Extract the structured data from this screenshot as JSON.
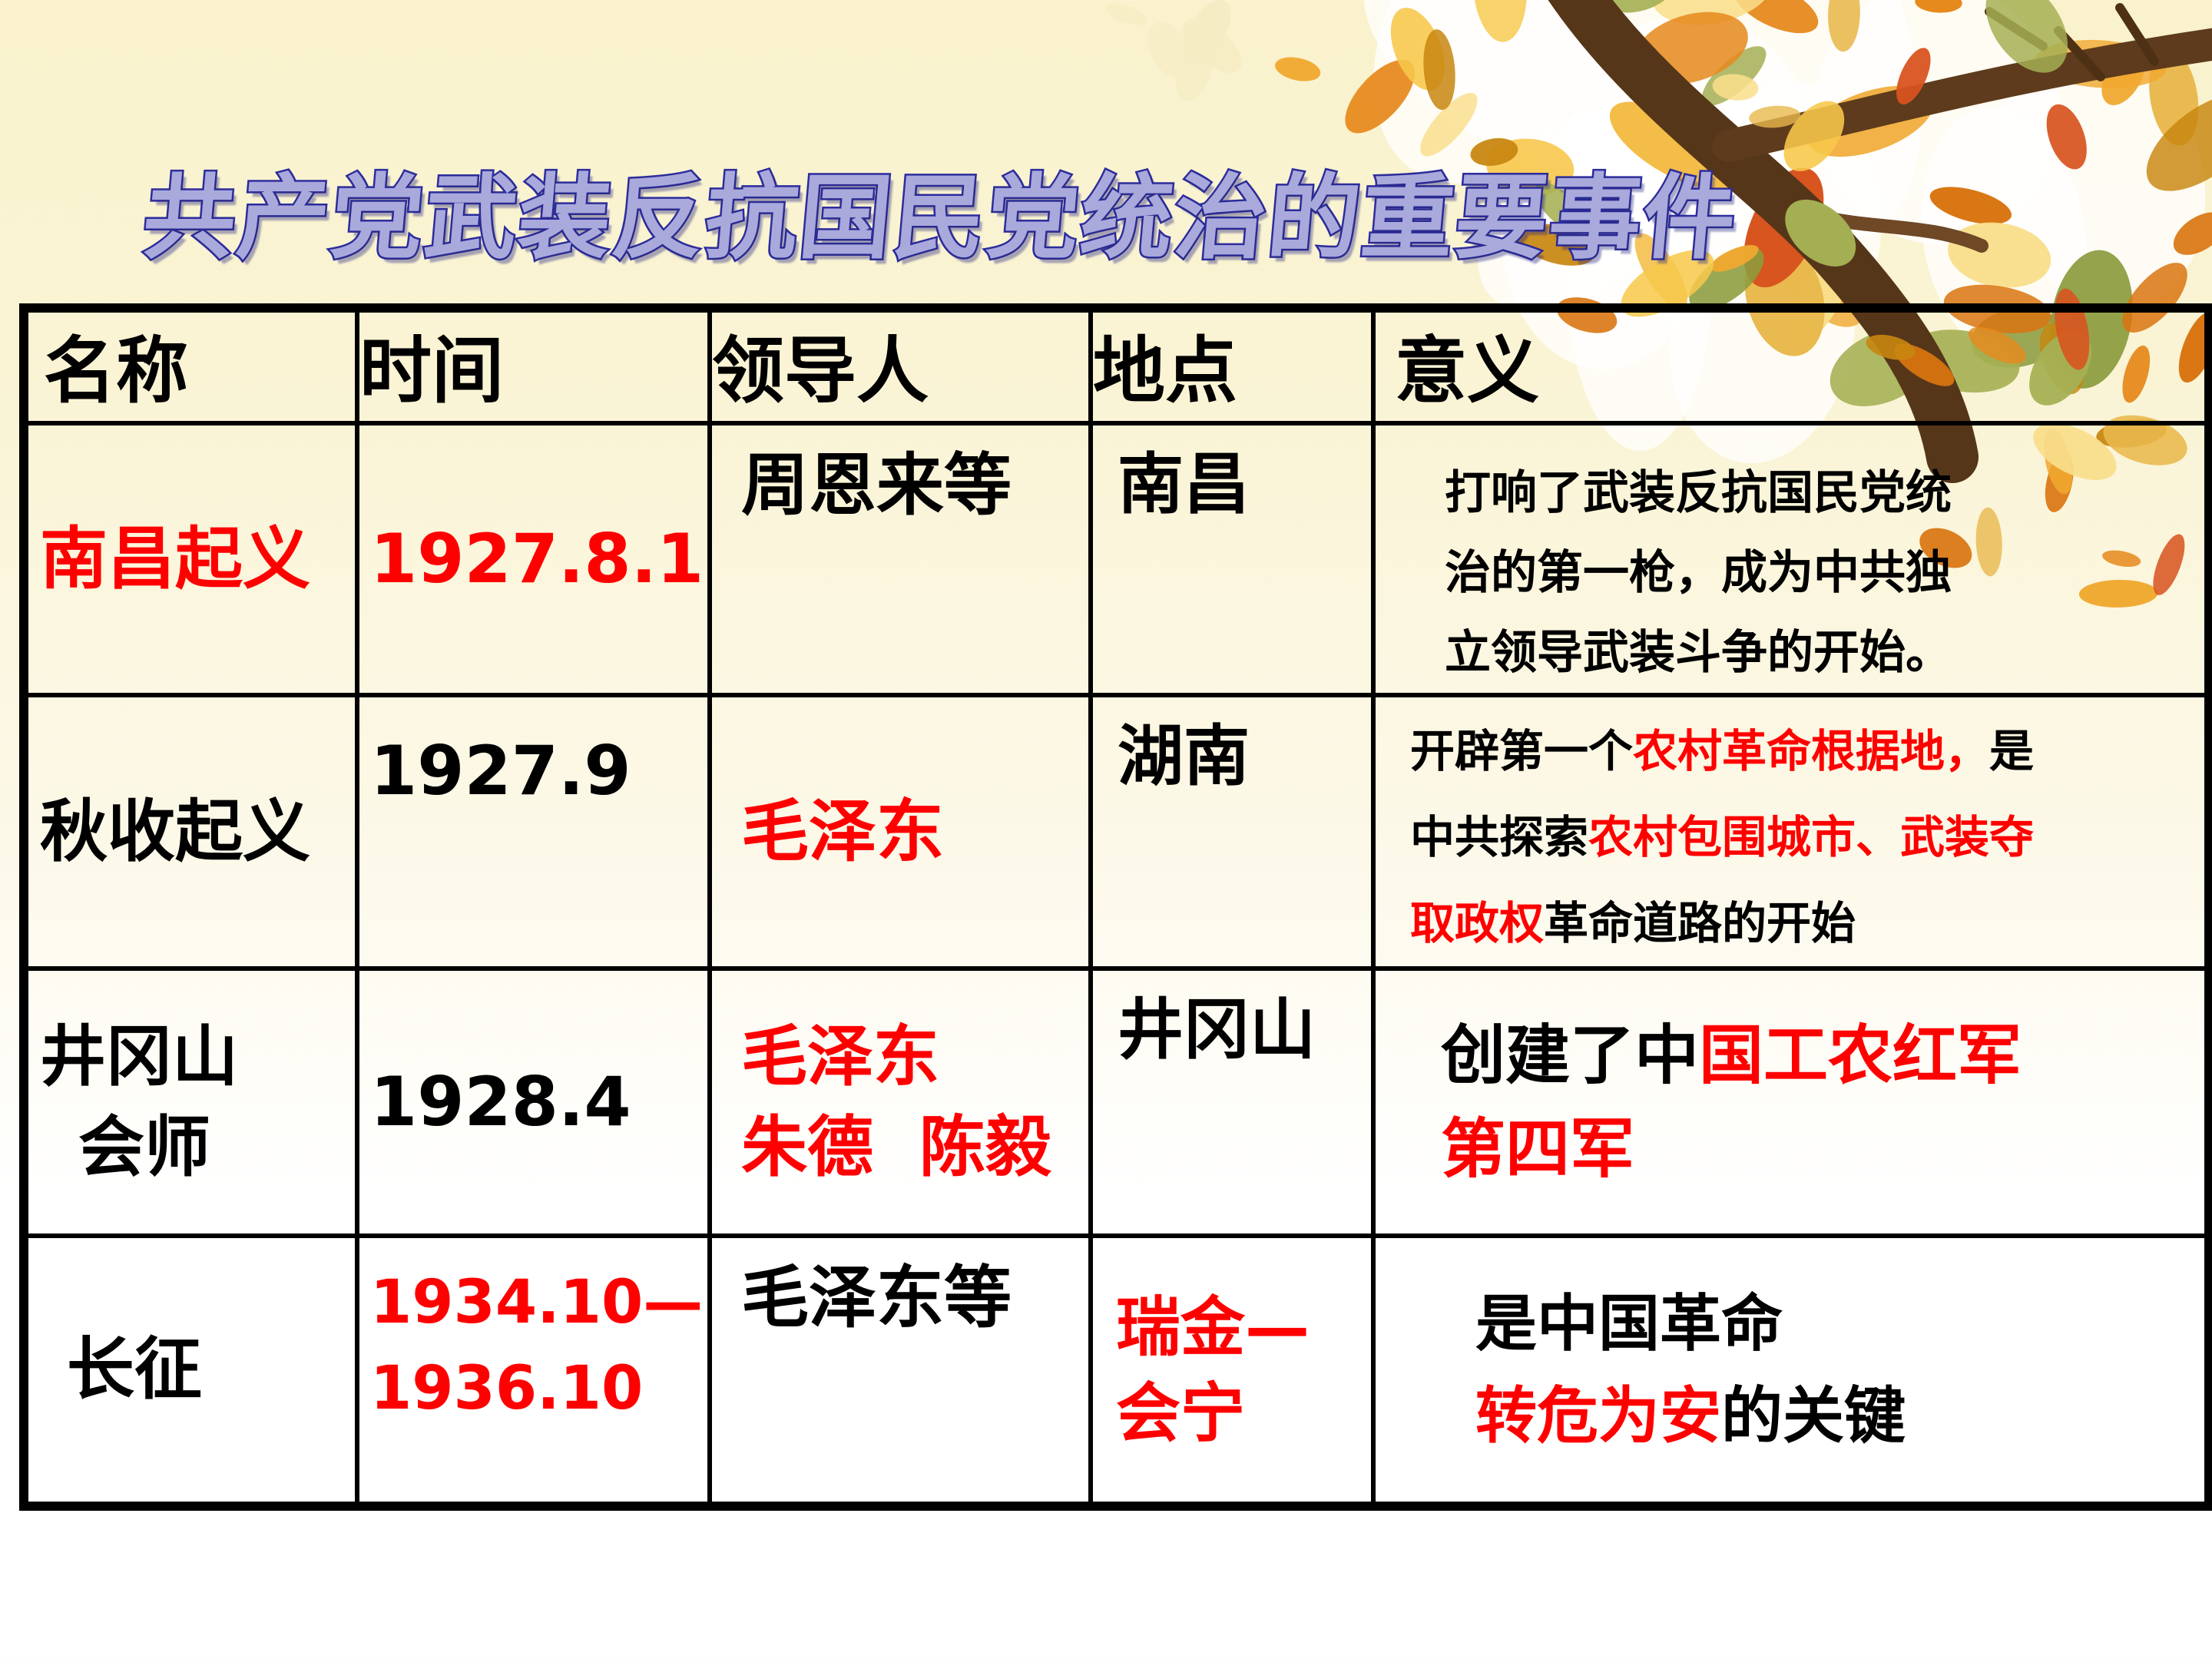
{
  "slide_title": {
    "text": "共产党武装反抗国民党统治的重要事件",
    "fill_color": "#a9a9dc",
    "outline_color": "#2c2c9c"
  },
  "colors": {
    "red": "#ff0000",
    "black": "#000000",
    "background_top": "#f9f2cc",
    "background_bottom": "#ffffff",
    "table_border": "#000000"
  },
  "decor": {
    "image_name": "autumn-branch-with-leaves",
    "branch_color": "#563619",
    "palette": [
      "#f7c84b",
      "#f0a82f",
      "#e68a1e",
      "#d9740f",
      "#f9de8b",
      "#e8b84c",
      "#c8860f",
      "#f3b93c",
      "#a5b054",
      "#8c9c3e",
      "#d8541f",
      "#f6ecc4"
    ]
  },
  "table": {
    "headers": [
      "名称",
      "时间",
      "领导人",
      "地点",
      "意义"
    ],
    "rows": [
      {
        "name": {
          "v": "mid",
          "lines": [
            [
              {
                "t": "南昌起义",
                "c": "red"
              }
            ]
          ]
        },
        "time": {
          "v": "mid",
          "lines": [
            [
              {
                "t": "1927.8.1",
                "c": "red"
              }
            ]
          ]
        },
        "leaders": {
          "v": "top",
          "lines": [
            [
              {
                "t": "周恩来等",
                "c": "black"
              }
            ]
          ]
        },
        "location": {
          "v": "top",
          "lines": [
            [
              {
                "t": "南昌",
                "c": "black"
              }
            ]
          ]
        },
        "significance": {
          "v": "top",
          "lines": [
            [
              {
                "t": "打响了武装反抗国民党统",
                "c": "black"
              }
            ],
            [
              {
                "t": "治的第一枪，成为中共独",
                "c": "black"
              }
            ],
            [
              {
                "t": "立领导武装斗争的开始。",
                "c": "black"
              }
            ]
          ]
        }
      },
      {
        "name": {
          "v": "mid",
          "lines": [
            [
              {
                "t": "秋收起义",
                "c": "black"
              }
            ]
          ]
        },
        "time": {
          "v": "top",
          "lines": [
            [
              {
                "t": "1927.9",
                "c": "black"
              }
            ]
          ]
        },
        "leaders": {
          "v": "mid",
          "lines": [
            [
              {
                "t": "毛泽东",
                "c": "red"
              }
            ]
          ]
        },
        "location": {
          "v": "top",
          "lines": [
            [
              {
                "t": "湖南",
                "c": "black"
              }
            ]
          ]
        },
        "significance": {
          "v": "top",
          "lines": [
            [
              {
                "t": "开辟第一个",
                "c": "black"
              },
              {
                "t": "农村革命根据地，",
                "c": "red"
              },
              {
                "t": "是",
                "c": "black"
              }
            ],
            [
              {
                "t": "中共探索",
                "c": "black"
              },
              {
                "t": "农村包围城市、武装夺",
                "c": "red"
              }
            ],
            [
              {
                "t": "取政权",
                "c": "red"
              },
              {
                "t": "革命道路的开始",
                "c": "black"
              }
            ]
          ]
        }
      },
      {
        "name": {
          "v": "mid",
          "lines": [
            [
              {
                "t": "井冈山",
                "c": "black"
              }
            ],
            [
              {
                "t": "会师",
                "c": "black"
              }
            ]
          ]
        },
        "time": {
          "v": "mid",
          "lines": [
            [
              {
                "t": "1928.4",
                "c": "black"
              }
            ]
          ]
        },
        "leaders": {
          "v": "mid",
          "lines": [
            [
              {
                "t": "毛泽东",
                "c": "red"
              }
            ],
            [
              {
                "t": "朱德  陈毅",
                "c": "red"
              }
            ]
          ]
        },
        "location": {
          "v": "top",
          "lines": [
            [
              {
                "t": "井冈山",
                "c": "black"
              }
            ]
          ]
        },
        "significance": {
          "v": "mid",
          "lines": [
            [
              {
                "t": "创建了中",
                "c": "black"
              },
              {
                "t": "国工农红军",
                "c": "red"
              }
            ],
            [
              {
                "t": "第四军",
                "c": "red"
              }
            ]
          ]
        }
      },
      {
        "name": {
          "v": "mid",
          "lines": [
            [
              {
                "t": "长征",
                "c": "black"
              }
            ]
          ]
        },
        "time": {
          "v": "top",
          "lines": [
            [
              {
                "t": "1934.10—",
                "c": "red"
              }
            ],
            [
              {
                "t": "1936.10",
                "c": "red"
              }
            ]
          ]
        },
        "leaders": {
          "v": "top",
          "lines": [
            [
              {
                "t": "毛泽东等",
                "c": "black"
              }
            ]
          ]
        },
        "location": {
          "v": "mid",
          "lines": [
            [
              {
                "t": "瑞金—",
                "c": "red"
              }
            ],
            [
              {
                "t": "会宁",
                "c": "red"
              }
            ]
          ]
        },
        "significance": {
          "v": "mid",
          "lines": [
            [
              {
                "t": "是中国革命",
                "c": "black"
              }
            ],
            [
              {
                "t": "转危为安",
                "c": "red"
              },
              {
                "t": "的关键",
                "c": "black"
              }
            ]
          ]
        }
      }
    ]
  }
}
